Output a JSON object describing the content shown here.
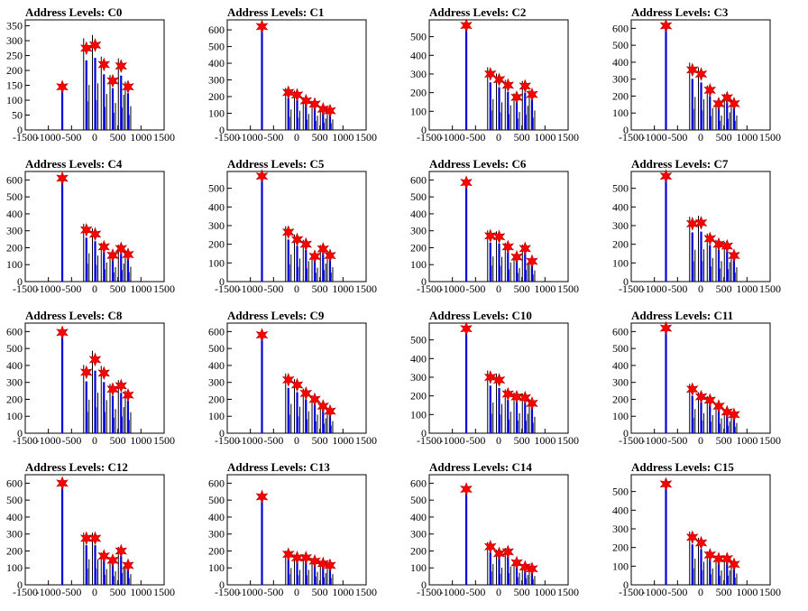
{
  "chart_data": [
    {
      "title": "Address Levels: C0",
      "type": "bar",
      "ylim": [
        0,
        370
      ],
      "y_ticks": [
        0,
        50,
        100,
        150,
        200,
        250,
        300,
        350
      ],
      "x_ticks": [
        -1500,
        -1000,
        -500,
        0,
        500,
        1000,
        1500
      ],
      "peaks": [
        {
          "x": -700,
          "y": 145
        },
        {
          "x": -180,
          "y": 275
        },
        {
          "x": 10,
          "y": 285
        },
        {
          "x": 200,
          "y": 220
        },
        {
          "x": 390,
          "y": 165
        },
        {
          "x": 570,
          "y": 215
        },
        {
          "x": 720,
          "y": 145
        }
      ]
    },
    {
      "title": "Address Levels: C1",
      "type": "bar",
      "ylim": [
        0,
        660
      ],
      "y_ticks": [
        0,
        100,
        200,
        300,
        400,
        500,
        600
      ],
      "x_ticks": [
        -1500,
        -1000,
        -500,
        0,
        500,
        1000,
        1500
      ],
      "peaks": [
        {
          "x": -750,
          "y": 620
        },
        {
          "x": -180,
          "y": 225
        },
        {
          "x": 10,
          "y": 210
        },
        {
          "x": 200,
          "y": 175
        },
        {
          "x": 390,
          "y": 155
        },
        {
          "x": 570,
          "y": 125
        },
        {
          "x": 720,
          "y": 115
        }
      ]
    },
    {
      "title": "Address Levels: C2",
      "type": "bar",
      "ylim": [
        0,
        590
      ],
      "y_ticks": [
        0,
        100,
        200,
        300,
        400,
        500
      ],
      "x_ticks": [
        -1500,
        -1000,
        -500,
        0,
        500,
        1000,
        1500
      ],
      "peaks": [
        {
          "x": -700,
          "y": 560
        },
        {
          "x": -180,
          "y": 300
        },
        {
          "x": 10,
          "y": 270
        },
        {
          "x": 200,
          "y": 240
        },
        {
          "x": 390,
          "y": 175
        },
        {
          "x": 570,
          "y": 235
        },
        {
          "x": 720,
          "y": 190
        }
      ]
    },
    {
      "title": "Address Levels: C3",
      "type": "bar",
      "ylim": [
        0,
        650
      ],
      "y_ticks": [
        0,
        100,
        200,
        300,
        400,
        500,
        600
      ],
      "x_ticks": [
        -1500,
        -1000,
        -500,
        0,
        500,
        1000,
        1500
      ],
      "peaks": [
        {
          "x": -750,
          "y": 615
        },
        {
          "x": -180,
          "y": 355
        },
        {
          "x": 10,
          "y": 330
        },
        {
          "x": 200,
          "y": 235
        },
        {
          "x": 390,
          "y": 155
        },
        {
          "x": 570,
          "y": 190
        },
        {
          "x": 720,
          "y": 155
        }
      ]
    },
    {
      "title": "Address Levels: C4",
      "type": "bar",
      "ylim": [
        0,
        650
      ],
      "y_ticks": [
        0,
        100,
        200,
        300,
        400,
        500,
        600
      ],
      "x_ticks": [
        -1500,
        -1000,
        -500,
        0,
        500,
        1000,
        1500
      ],
      "peaks": [
        {
          "x": -700,
          "y": 610
        },
        {
          "x": -180,
          "y": 305
        },
        {
          "x": 10,
          "y": 280
        },
        {
          "x": 200,
          "y": 205
        },
        {
          "x": 390,
          "y": 155
        },
        {
          "x": 570,
          "y": 195
        },
        {
          "x": 720,
          "y": 160
        }
      ]
    },
    {
      "title": "Address Levels: C5",
      "type": "bar",
      "ylim": [
        0,
        590
      ],
      "y_ticks": [
        0,
        100,
        200,
        300,
        400,
        500
      ],
      "x_ticks": [
        -1500,
        -1000,
        -500,
        0,
        500,
        1000,
        1500
      ],
      "peaks": [
        {
          "x": -750,
          "y": 565
        },
        {
          "x": -180,
          "y": 265
        },
        {
          "x": 10,
          "y": 225
        },
        {
          "x": 200,
          "y": 200
        },
        {
          "x": 390,
          "y": 135
        },
        {
          "x": 570,
          "y": 175
        },
        {
          "x": 720,
          "y": 140
        }
      ]
    },
    {
      "title": "Address Levels: C6",
      "type": "bar",
      "ylim": [
        0,
        650
      ],
      "y_ticks": [
        0,
        100,
        200,
        300,
        400,
        500,
        600
      ],
      "x_ticks": [
        -1500,
        -1000,
        -500,
        0,
        500,
        1000,
        1500
      ],
      "peaks": [
        {
          "x": -700,
          "y": 585
        },
        {
          "x": -180,
          "y": 270
        },
        {
          "x": 10,
          "y": 265
        },
        {
          "x": 200,
          "y": 205
        },
        {
          "x": 390,
          "y": 145
        },
        {
          "x": 570,
          "y": 195
        },
        {
          "x": 720,
          "y": 120
        }
      ]
    },
    {
      "title": "Address Levels: C7",
      "type": "bar",
      "ylim": [
        0,
        590
      ],
      "y_ticks": [
        0,
        100,
        200,
        300,
        400,
        500
      ],
      "x_ticks": [
        -1500,
        -1000,
        -500,
        0,
        500,
        1000,
        1500
      ],
      "peaks": [
        {
          "x": -750,
          "y": 565
        },
        {
          "x": -180,
          "y": 310
        },
        {
          "x": 10,
          "y": 315
        },
        {
          "x": 200,
          "y": 230
        },
        {
          "x": 390,
          "y": 200
        },
        {
          "x": 570,
          "y": 190
        },
        {
          "x": 720,
          "y": 140
        }
      ]
    },
    {
      "title": "Address Levels: C8",
      "type": "bar",
      "ylim": [
        0,
        650
      ],
      "y_ticks": [
        0,
        100,
        200,
        300,
        400,
        500,
        600
      ],
      "x_ticks": [
        -1500,
        -1000,
        -500,
        0,
        500,
        1000,
        1500
      ],
      "peaks": [
        {
          "x": -700,
          "y": 595
        },
        {
          "x": -180,
          "y": 360
        },
        {
          "x": 10,
          "y": 435
        },
        {
          "x": 200,
          "y": 355
        },
        {
          "x": 390,
          "y": 260
        },
        {
          "x": 570,
          "y": 280
        },
        {
          "x": 720,
          "y": 225
        }
      ]
    },
    {
      "title": "Address Levels: C9",
      "type": "bar",
      "ylim": [
        0,
        650
      ],
      "y_ticks": [
        0,
        100,
        200,
        300,
        400,
        500,
        600
      ],
      "x_ticks": [
        -1500,
        -1000,
        -500,
        0,
        500,
        1000,
        1500
      ],
      "peaks": [
        {
          "x": -750,
          "y": 580
        },
        {
          "x": -180,
          "y": 315
        },
        {
          "x": 10,
          "y": 285
        },
        {
          "x": 200,
          "y": 235
        },
        {
          "x": 390,
          "y": 200
        },
        {
          "x": 570,
          "y": 160
        },
        {
          "x": 720,
          "y": 130
        }
      ]
    },
    {
      "title": "Address Levels: C10",
      "type": "bar",
      "ylim": [
        0,
        590
      ],
      "y_ticks": [
        0,
        100,
        200,
        300,
        400,
        500
      ],
      "x_ticks": [
        -1500,
        -1000,
        -500,
        0,
        500,
        1000,
        1500
      ],
      "peaks": [
        {
          "x": -700,
          "y": 560
        },
        {
          "x": -180,
          "y": 300
        },
        {
          "x": 10,
          "y": 285
        },
        {
          "x": 200,
          "y": 210
        },
        {
          "x": 390,
          "y": 195
        },
        {
          "x": 570,
          "y": 190
        },
        {
          "x": 720,
          "y": 160
        }
      ]
    },
    {
      "title": "Address Levels: C11",
      "type": "bar",
      "ylim": [
        0,
        650
      ],
      "y_ticks": [
        0,
        100,
        200,
        300,
        400,
        500,
        600
      ],
      "x_ticks": [
        -1500,
        -1000,
        -500,
        0,
        500,
        1000,
        1500
      ],
      "peaks": [
        {
          "x": -750,
          "y": 620
        },
        {
          "x": -180,
          "y": 260
        },
        {
          "x": 10,
          "y": 215
        },
        {
          "x": 200,
          "y": 195
        },
        {
          "x": 390,
          "y": 160
        },
        {
          "x": 570,
          "y": 125
        },
        {
          "x": 720,
          "y": 110
        }
      ]
    },
    {
      "title": "Address Levels: C12",
      "type": "bar",
      "ylim": [
        0,
        650
      ],
      "y_ticks": [
        0,
        100,
        200,
        300,
        400,
        500,
        600
      ],
      "x_ticks": [
        -1500,
        -1000,
        -500,
        0,
        500,
        1000,
        1500
      ],
      "peaks": [
        {
          "x": -700,
          "y": 600
        },
        {
          "x": -180,
          "y": 275
        },
        {
          "x": 10,
          "y": 275
        },
        {
          "x": 200,
          "y": 170
        },
        {
          "x": 390,
          "y": 145
        },
        {
          "x": 570,
          "y": 200
        },
        {
          "x": 720,
          "y": 115
        }
      ]
    },
    {
      "title": "Address Levels: C13",
      "type": "bar",
      "ylim": [
        0,
        650
      ],
      "y_ticks": [
        0,
        100,
        200,
        300,
        400,
        500,
        600
      ],
      "x_ticks": [
        -1500,
        -1000,
        -500,
        0,
        500,
        1000,
        1500
      ],
      "peaks": [
        {
          "x": -750,
          "y": 520
        },
        {
          "x": -180,
          "y": 180
        },
        {
          "x": 10,
          "y": 160
        },
        {
          "x": 200,
          "y": 160
        },
        {
          "x": 390,
          "y": 140
        },
        {
          "x": 570,
          "y": 125
        },
        {
          "x": 720,
          "y": 115
        }
      ]
    },
    {
      "title": "Address Levels: C14",
      "type": "bar",
      "ylim": [
        0,
        650
      ],
      "y_ticks": [
        0,
        100,
        200,
        300,
        400,
        500,
        600
      ],
      "x_ticks": [
        -1500,
        -1000,
        -500,
        0,
        500,
        1000,
        1500
      ],
      "peaks": [
        {
          "x": -700,
          "y": 565
        },
        {
          "x": -180,
          "y": 225
        },
        {
          "x": 10,
          "y": 185
        },
        {
          "x": 200,
          "y": 195
        },
        {
          "x": 390,
          "y": 130
        },
        {
          "x": 570,
          "y": 105
        },
        {
          "x": 720,
          "y": 95
        }
      ]
    },
    {
      "title": "Address Levels: C15",
      "type": "bar",
      "ylim": [
        0,
        590
      ],
      "y_ticks": [
        0,
        100,
        200,
        300,
        400,
        500
      ],
      "x_ticks": [
        -1500,
        -1000,
        -500,
        0,
        500,
        1000,
        1500
      ],
      "peaks": [
        {
          "x": -750,
          "y": 540
        },
        {
          "x": -180,
          "y": 255
        },
        {
          "x": 10,
          "y": 225
        },
        {
          "x": 200,
          "y": 160
        },
        {
          "x": 390,
          "y": 140
        },
        {
          "x": 570,
          "y": 140
        },
        {
          "x": 720,
          "y": 110
        }
      ]
    }
  ],
  "colors": {
    "histogram_blue": "#0000dd",
    "histogram_black": "#000000",
    "marker_fill": "#ff0000",
    "marker_stroke": "#b00000"
  }
}
